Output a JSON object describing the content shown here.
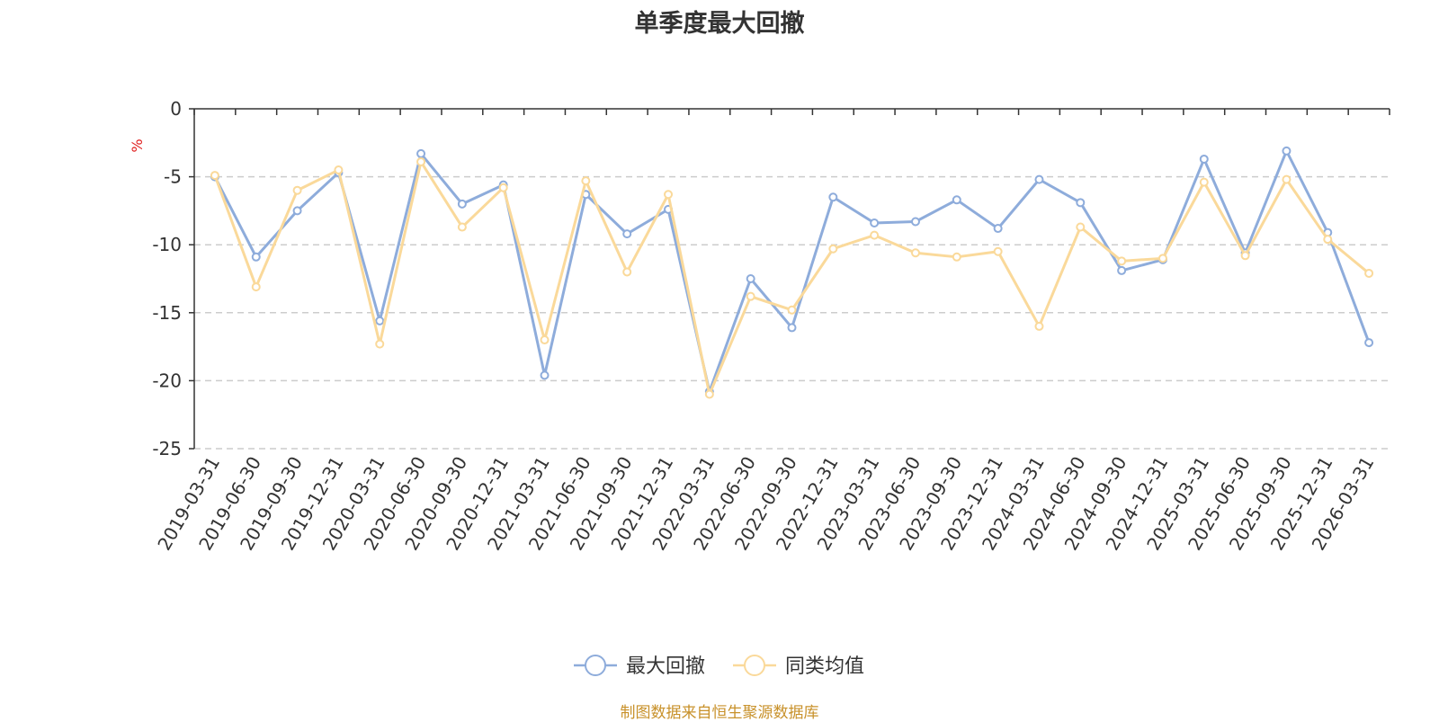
{
  "chart_data": {
    "type": "line",
    "title": "单季度最大回撤",
    "ylabel": "%",
    "ylim": [
      -25,
      0
    ],
    "yticks": [
      0,
      -5,
      -10,
      -15,
      -20,
      -25
    ],
    "grid": "horizontal dashed",
    "legend_position": "bottom-center",
    "categories": [
      "2019-03-31",
      "2019-06-30",
      "2019-09-30",
      "2019-12-31",
      "2020-03-31",
      "2020-06-30",
      "2020-09-30",
      "2020-12-31",
      "2021-03-31",
      "2021-06-30",
      "2021-09-30",
      "2021-12-31",
      "2022-03-31",
      "2022-06-30",
      "2022-09-30",
      "2022-12-31",
      "2023-03-31",
      "2023-06-30",
      "2023-09-30",
      "2023-12-31",
      "2024-03-31",
      "2024-06-30",
      "2024-09-30",
      "2024-12-31",
      "2025-03-31",
      "2025-06-30",
      "2025-09-30",
      "2025-12-31",
      "2026-03-31"
    ],
    "series": [
      {
        "name": "最大回撤",
        "color": "#8eacdb",
        "values": [
          -5.0,
          -10.9,
          -7.5,
          -4.7,
          -15.6,
          -3.3,
          -7.0,
          -5.6,
          -19.6,
          -6.3,
          -9.2,
          -7.4,
          -20.8,
          -12.5,
          -16.1,
          -6.5,
          -8.4,
          -8.3,
          -6.7,
          -8.8,
          -5.2,
          -6.9,
          -11.9,
          -11.1,
          -3.7,
          -10.6,
          -3.1,
          -9.1,
          -17.2
        ]
      },
      {
        "name": "同类均值",
        "color": "#fad99a",
        "values": [
          -4.9,
          -13.1,
          -6.0,
          -4.5,
          -17.3,
          -3.9,
          -8.7,
          -5.8,
          -17.0,
          -5.3,
          -12.0,
          -6.3,
          -21.0,
          -13.8,
          -14.8,
          -10.3,
          -9.3,
          -10.6,
          -10.9,
          -10.5,
          -16.0,
          -8.7,
          -11.2,
          -11.0,
          -5.4,
          -10.8,
          -5.2,
          -9.6,
          -12.1
        ]
      }
    ]
  },
  "footer": {
    "source": "制图数据来自恒生聚源数据库"
  }
}
